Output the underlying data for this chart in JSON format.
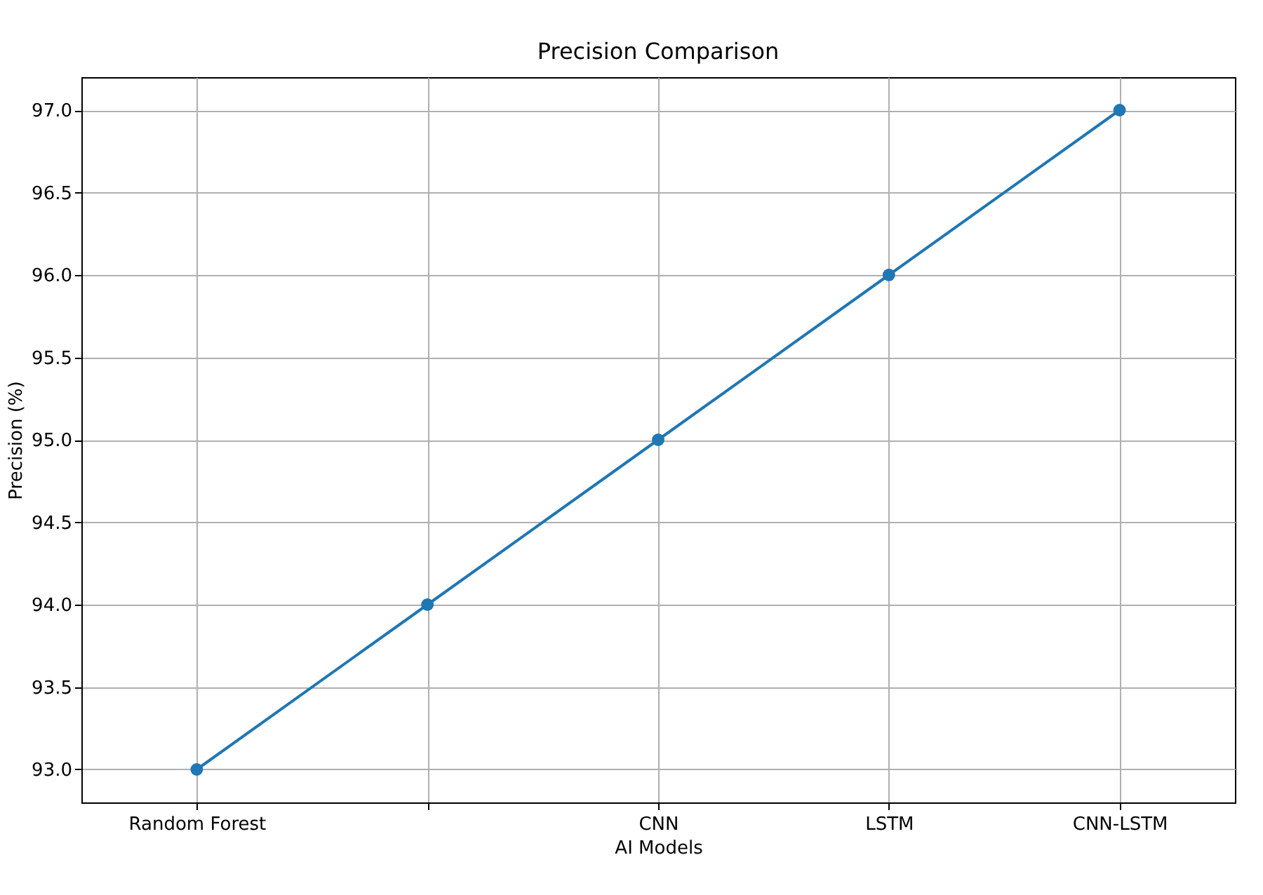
{
  "chart_data": {
    "type": "line",
    "title": "Precision Comparison",
    "xlabel": "AI Models",
    "ylabel": "Precision (%)",
    "categories": [
      "Random Forest",
      null,
      "CNN",
      "LSTM",
      "CNN-LSTM"
    ],
    "series": [
      {
        "color": "#1f77b4",
        "values": [
          93,
          94,
          95,
          96,
          97
        ]
      }
    ],
    "ylim": [
      92.8,
      97.2
    ],
    "yticks": [
      {
        "value": 93,
        "label": "93.0"
      },
      {
        "value": 93.5,
        "label": "93.5"
      },
      {
        "value": 94,
        "label": "94.0"
      },
      {
        "value": 94.5,
        "label": "94.5"
      },
      {
        "value": 95,
        "label": "95.0"
      },
      {
        "value": 95.5,
        "label": "95.5"
      },
      {
        "value": 96,
        "label": "96.0"
      },
      {
        "value": 96.5,
        "label": "96.5"
      },
      {
        "value": 97,
        "label": "97.0"
      }
    ],
    "grid": true,
    "marker": "circle",
    "line_style": "solid"
  }
}
